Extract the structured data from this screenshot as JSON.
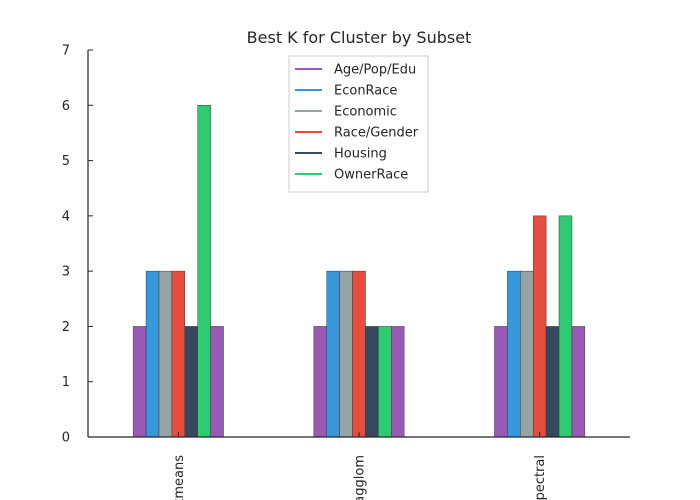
{
  "chart_data": {
    "type": "bar",
    "title": "Best K for Cluster by Subset",
    "xlabel": "",
    "ylabel": "",
    "ylim": [
      0,
      7
    ],
    "yticks": [
      0,
      1,
      2,
      3,
      4,
      5,
      6,
      7
    ],
    "categories": [
      "kmeans",
      "agglom",
      "spectral"
    ],
    "series": [
      {
        "name": "Age/Pop/Edu",
        "color": "#9b59b6",
        "values": [
          2,
          2,
          2
        ]
      },
      {
        "name": "EconRace",
        "color": "#3498db",
        "values": [
          3,
          3,
          3
        ]
      },
      {
        "name": "Economic",
        "color": "#95a5a6",
        "values": [
          3,
          3,
          3
        ]
      },
      {
        "name": "Race/Gender",
        "color": "#e74c3c",
        "values": [
          3,
          3,
          4
        ]
      },
      {
        "name": "Housing",
        "color": "#34495e",
        "values": [
          2,
          2,
          2
        ]
      },
      {
        "name": "OwnerRace",
        "color": "#2ecc71",
        "values": [
          6,
          2,
          4
        ]
      },
      {
        "name": "",
        "color": "#9b59b6",
        "values": [
          2,
          2,
          2
        ]
      }
    ],
    "legend": {
      "position": "top-center"
    },
    "grid": false
  }
}
